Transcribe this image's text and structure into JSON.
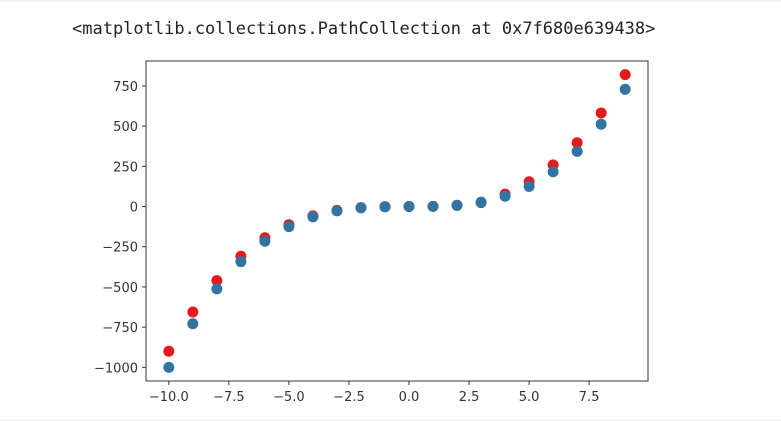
{
  "output": {
    "repr_text": "<matplotlib.collections.PathCollection at 0x7f680e639438>"
  },
  "colors": {
    "series_red": "#e41a1c",
    "series_blue": "#3274a1",
    "axes": "#333333"
  },
  "chart_data": {
    "type": "scatter",
    "title": "",
    "xlabel": "",
    "ylabel": "",
    "xlim": [
      -10.95,
      9.95
    ],
    "ylim": [
      -1085,
      905
    ],
    "grid": false,
    "xticks": [
      -10.0,
      -7.5,
      -5.0,
      -2.5,
      0.0,
      2.5,
      5.0,
      7.5
    ],
    "xtick_labels": [
      "−10.0",
      "−7.5",
      "−5.0",
      "−2.5",
      "0.0",
      "2.5",
      "5.0",
      "7.5"
    ],
    "yticks": [
      750,
      500,
      250,
      0,
      -250,
      -500,
      -750,
      -1000
    ],
    "ytick_labels": [
      "750",
      "500",
      "250",
      "0",
      "−250",
      "−500",
      "−750",
      "−1000"
    ],
    "x": [
      -10,
      -9,
      -8,
      -7,
      -6,
      -5,
      -4,
      -3,
      -2,
      -1,
      0,
      1,
      2,
      3,
      4,
      5,
      6,
      7,
      8,
      9
    ],
    "series": [
      {
        "color": "#e41a1c",
        "values": [
          -900,
          -656,
          -461,
          -309,
          -194,
          -113,
          -58,
          -24,
          -7,
          -1,
          0,
          1,
          7,
          24,
          77,
          154,
          259,
          397,
          582,
          820
        ]
      },
      {
        "color": "#3274a1",
        "values": [
          -1000,
          -729,
          -512,
          -343,
          -216,
          -125,
          -64,
          -27,
          -8,
          -1,
          0,
          1,
          8,
          27,
          64,
          125,
          216,
          343,
          512,
          729
        ]
      }
    ]
  }
}
